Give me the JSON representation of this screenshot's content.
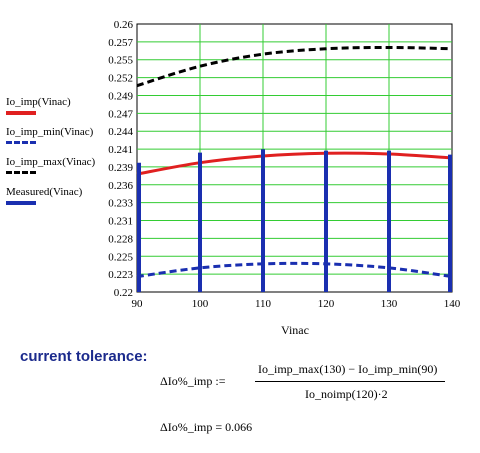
{
  "chart_data": {
    "type": "line",
    "x": [
      90,
      100,
      110,
      120,
      130,
      140
    ],
    "xlim": [
      90,
      140
    ],
    "ylim": [
      0.22,
      0.26
    ],
    "xlabel": "Vinac",
    "ylabel": "",
    "xticks": [
      90,
      100,
      110,
      120,
      130,
      140
    ],
    "yticks": [
      "0.26",
      "0.257",
      "0.255",
      "0.252",
      "0.249",
      "0.247",
      "0.244",
      "0.241",
      "0.239",
      "0.236",
      "0.233",
      "0.231",
      "0.228",
      "0.225",
      "0.223",
      "0.22"
    ],
    "grid": true,
    "legend_position": "left",
    "series": [
      {
        "name": "Io_imp(Vinac)",
        "style": "solid",
        "color": "#e02020",
        "x": [
          90,
          100,
          110,
          120,
          130,
          140
        ],
        "values": [
          0.2376,
          0.2393,
          0.2403,
          0.2407,
          0.2406,
          0.24
        ]
      },
      {
        "name": "Io_imp_min(Vinac)",
        "style": "dashed",
        "color": "#1a2fb0",
        "x": [
          90,
          100,
          110,
          120,
          130,
          140
        ],
        "values": [
          0.2223,
          0.2236,
          0.2242,
          0.2242,
          0.2236,
          0.2223
        ]
      },
      {
        "name": "Io_imp_max(Vinac)",
        "style": "dashed",
        "color": "#000000",
        "x": [
          90,
          100,
          110,
          120,
          130,
          140
        ],
        "values": [
          0.2508,
          0.2537,
          0.2555,
          0.2563,
          0.2565,
          0.2563
        ]
      },
      {
        "name": "Measured(Vinac)",
        "style": "stem",
        "color": "#1a2fb0",
        "x": [
          90,
          100,
          110,
          120,
          130,
          140
        ],
        "values": [
          0.2393,
          0.2408,
          0.2413,
          0.2411,
          0.2411,
          0.2405
        ]
      }
    ]
  },
  "heading": "current tolerance:",
  "formula": {
    "lhs": "ΔIo%_imp :=",
    "numerator": "Io_imp_max(130) − Io_imp_min(90)",
    "denominator": "Io_noimp(120)·2",
    "result": "ΔIo%_imp = 0.066"
  }
}
